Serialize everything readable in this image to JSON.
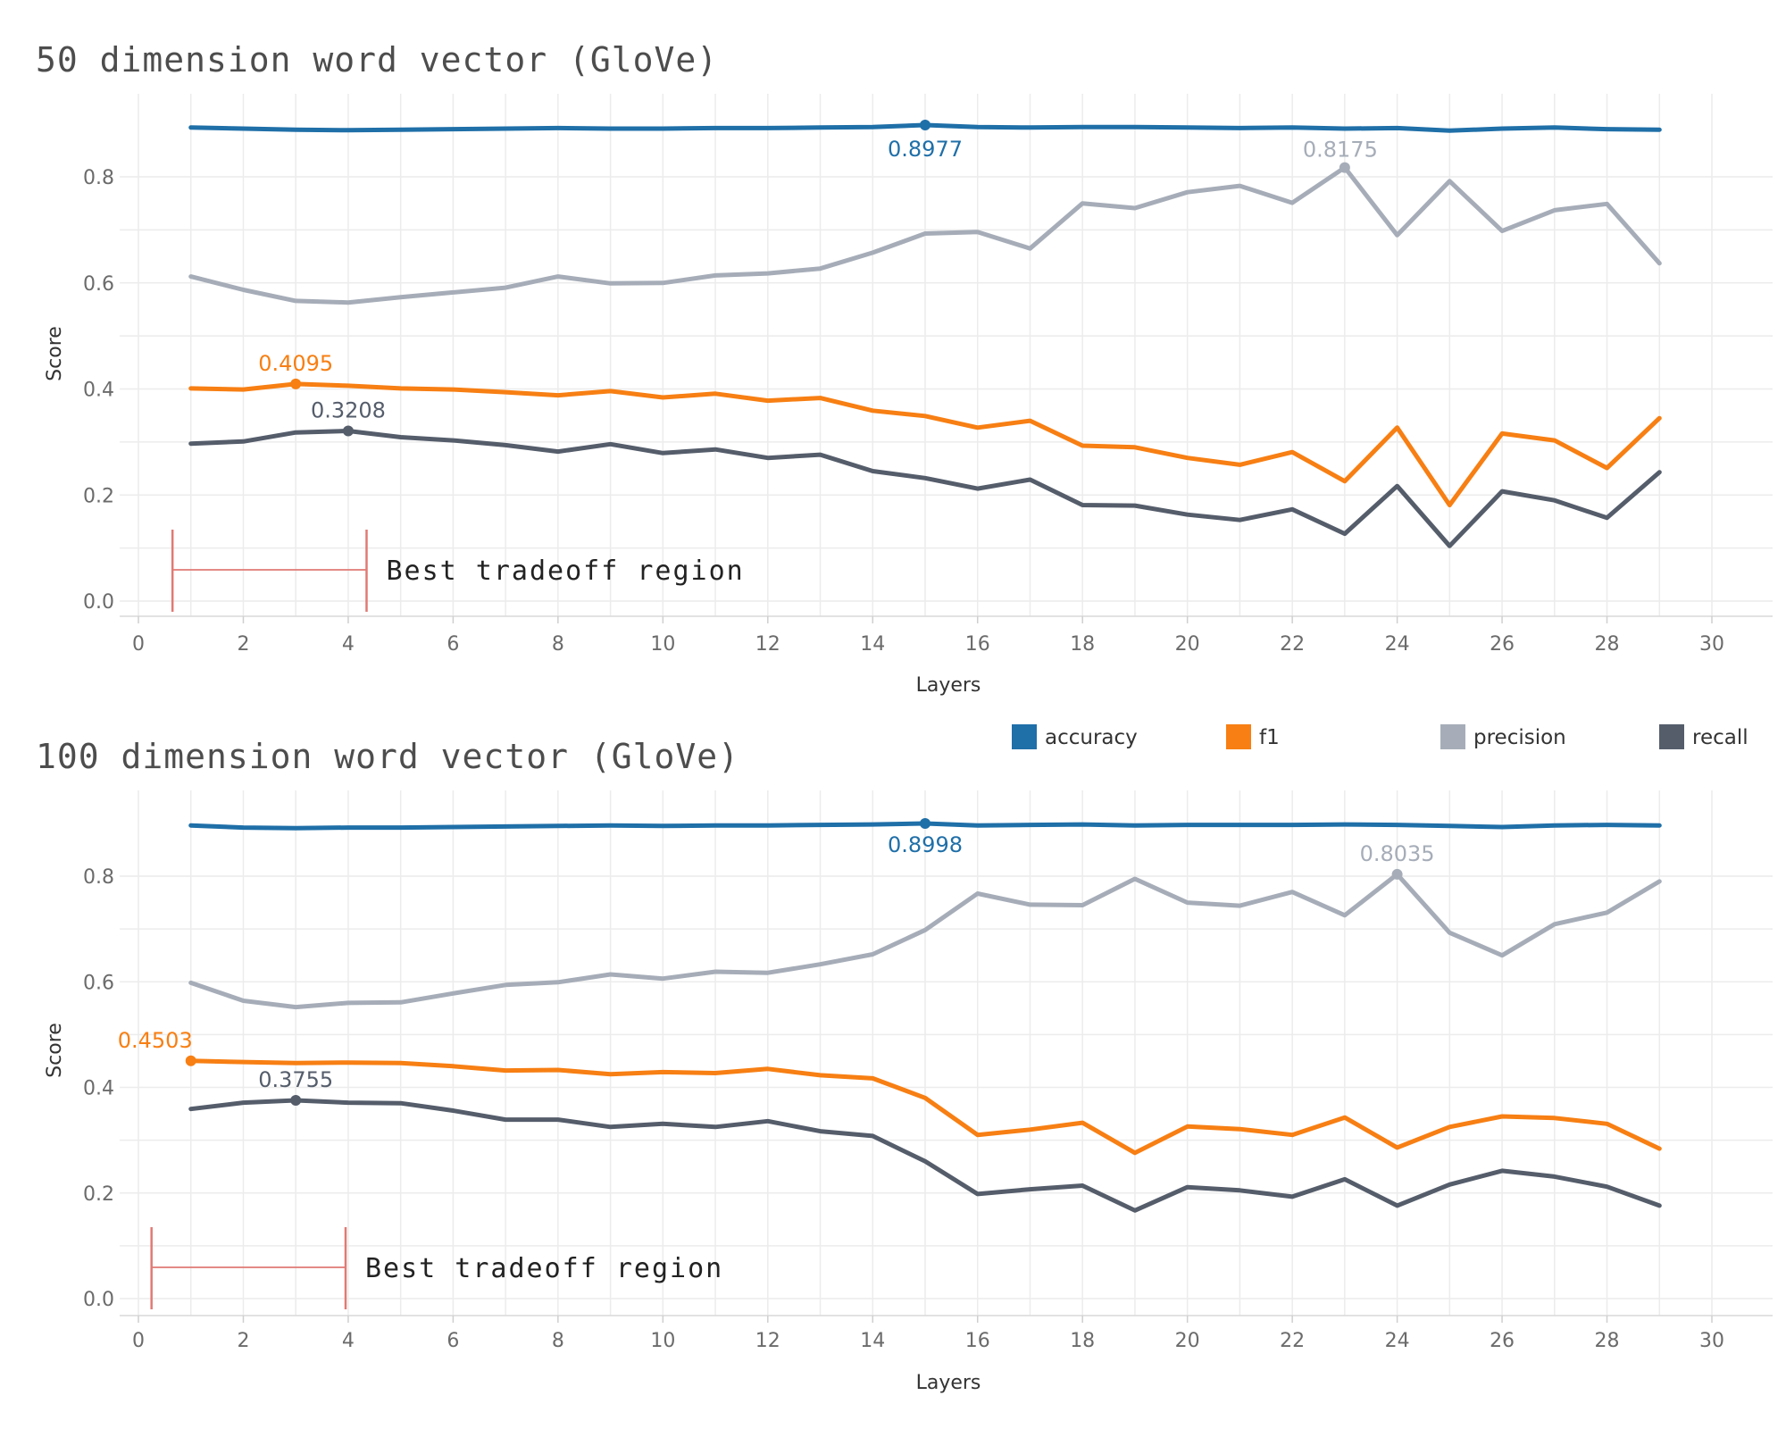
{
  "colors": {
    "accuracy": "#1f6fa8",
    "f1": "#f77f13",
    "precision": "#a6adb8",
    "recall": "#555d6b",
    "region": "#e07a74"
  },
  "legend": [
    {
      "key": "accuracy",
      "label": "accuracy"
    },
    {
      "key": "f1",
      "label": "f1"
    },
    {
      "key": "precision",
      "label": "precision"
    },
    {
      "key": "recall",
      "label": "recall"
    }
  ],
  "chart_data": [
    {
      "type": "line",
      "title": "50 dimension word vector (GloVe)",
      "xlabel": "Layers",
      "ylabel": "Score",
      "xlim": [
        0,
        30
      ],
      "ylim": [
        0,
        0.92
      ],
      "x_ticks": [
        "0",
        "2",
        "4",
        "6",
        "8",
        "10",
        "12",
        "14",
        "16",
        "18",
        "20",
        "22",
        "24",
        "26",
        "28",
        "30"
      ],
      "y_ticks": [
        "0.0",
        "0.2",
        "0.4",
        "0.6",
        "0.8"
      ],
      "grid": true,
      "x": [
        1,
        2,
        3,
        4,
        5,
        6,
        7,
        8,
        9,
        10,
        11,
        12,
        13,
        14,
        15,
        16,
        17,
        18,
        19,
        20,
        21,
        22,
        23,
        24,
        25,
        26,
        27,
        28,
        29
      ],
      "series": [
        {
          "name": "accuracy",
          "values": [
            0.893,
            0.891,
            0.889,
            0.888,
            0.889,
            0.89,
            0.891,
            0.892,
            0.891,
            0.891,
            0.892,
            0.892,
            0.893,
            0.894,
            0.8977,
            0.894,
            0.893,
            0.894,
            0.894,
            0.893,
            0.892,
            0.893,
            0.891,
            0.892,
            0.887,
            0.891,
            0.893,
            0.89,
            0.889
          ]
        },
        {
          "name": "f1",
          "values": [
            0.401,
            0.399,
            0.4095,
            0.406,
            0.401,
            0.399,
            0.394,
            0.388,
            0.396,
            0.384,
            0.391,
            0.378,
            0.383,
            0.359,
            0.349,
            0.327,
            0.34,
            0.293,
            0.29,
            0.27,
            0.257,
            0.281,
            0.226,
            0.327,
            0.181,
            0.316,
            0.303,
            0.251,
            0.345
          ]
        },
        {
          "name": "precision",
          "values": [
            0.612,
            0.587,
            0.566,
            0.563,
            0.573,
            0.582,
            0.591,
            0.612,
            0.599,
            0.6,
            0.614,
            0.618,
            0.627,
            0.657,
            0.693,
            0.696,
            0.665,
            0.75,
            0.741,
            0.771,
            0.783,
            0.751,
            0.8175,
            0.69,
            0.792,
            0.698,
            0.737,
            0.749,
            0.637
          ]
        },
        {
          "name": "recall",
          "values": [
            0.297,
            0.301,
            0.318,
            0.3208,
            0.309,
            0.303,
            0.294,
            0.282,
            0.296,
            0.279,
            0.286,
            0.27,
            0.276,
            0.245,
            0.232,
            0.212,
            0.229,
            0.181,
            0.18,
            0.163,
            0.153,
            0.173,
            0.127,
            0.217,
            0.104,
            0.207,
            0.19,
            0.157,
            0.243
          ]
        }
      ],
      "annotations": [
        {
          "series": "accuracy",
          "x": 15,
          "y": 0.8977,
          "label": "0.8977"
        },
        {
          "series": "precision",
          "x": 23,
          "y": 0.8175,
          "label": "0.8175"
        },
        {
          "series": "f1",
          "x": 3,
          "y": 0.4095,
          "label": "0.4095"
        },
        {
          "series": "recall",
          "x": 4,
          "y": 0.3208,
          "label": "0.3208"
        }
      ],
      "region": {
        "label": "Best tradeoff region",
        "x_start": 0.65,
        "x_end": 4.35
      }
    },
    {
      "type": "line",
      "title": "100 dimension word vector (GloVe)",
      "xlabel": "Layers",
      "ylabel": "Score",
      "xlim": [
        0,
        30
      ],
      "ylim": [
        0,
        0.92
      ],
      "x_ticks": [
        "0",
        "2",
        "4",
        "6",
        "8",
        "10",
        "12",
        "14",
        "16",
        "18",
        "20",
        "22",
        "24",
        "26",
        "28",
        "30"
      ],
      "y_ticks": [
        "0.0",
        "0.2",
        "0.4",
        "0.6",
        "0.8"
      ],
      "grid": true,
      "x": [
        1,
        2,
        3,
        4,
        5,
        6,
        7,
        8,
        9,
        10,
        11,
        12,
        13,
        14,
        15,
        16,
        17,
        18,
        19,
        20,
        21,
        22,
        23,
        24,
        25,
        26,
        27,
        28,
        29
      ],
      "series": [
        {
          "name": "accuracy",
          "values": [
            0.896,
            0.892,
            0.891,
            0.892,
            0.892,
            0.893,
            0.894,
            0.895,
            0.896,
            0.895,
            0.896,
            0.896,
            0.897,
            0.898,
            0.8998,
            0.896,
            0.897,
            0.898,
            0.896,
            0.897,
            0.897,
            0.897,
            0.898,
            0.897,
            0.895,
            0.893,
            0.896,
            0.897,
            0.896
          ]
        },
        {
          "name": "f1",
          "values": [
            0.4503,
            0.448,
            0.446,
            0.447,
            0.446,
            0.44,
            0.432,
            0.433,
            0.425,
            0.429,
            0.427,
            0.435,
            0.423,
            0.417,
            0.38,
            0.31,
            0.32,
            0.333,
            0.276,
            0.326,
            0.321,
            0.31,
            0.343,
            0.286,
            0.325,
            0.345,
            0.342,
            0.331,
            0.284
          ]
        },
        {
          "name": "precision",
          "values": [
            0.598,
            0.564,
            0.552,
            0.56,
            0.561,
            0.578,
            0.594,
            0.599,
            0.614,
            0.606,
            0.619,
            0.617,
            0.633,
            0.652,
            0.698,
            0.767,
            0.746,
            0.745,
            0.795,
            0.75,
            0.744,
            0.77,
            0.726,
            0.8035,
            0.693,
            0.65,
            0.709,
            0.731,
            0.79
          ]
        },
        {
          "name": "recall",
          "values": [
            0.359,
            0.371,
            0.3755,
            0.371,
            0.37,
            0.356,
            0.339,
            0.339,
            0.325,
            0.331,
            0.325,
            0.336,
            0.317,
            0.308,
            0.26,
            0.198,
            0.207,
            0.214,
            0.167,
            0.211,
            0.205,
            0.193,
            0.226,
            0.176,
            0.216,
            0.242,
            0.231,
            0.212,
            0.176
          ]
        }
      ],
      "annotations": [
        {
          "series": "accuracy",
          "x": 15,
          "y": 0.8998,
          "label": "0.8998"
        },
        {
          "series": "precision",
          "x": 24,
          "y": 0.8035,
          "label": "0.8035"
        },
        {
          "series": "f1",
          "x": 1,
          "y": 0.4503,
          "label": "0.4503"
        },
        {
          "series": "recall",
          "x": 3,
          "y": 0.3755,
          "label": "0.3755"
        }
      ],
      "region": {
        "label": "Best tradeoff region",
        "x_start": 0.25,
        "x_end": 3.95
      }
    }
  ]
}
